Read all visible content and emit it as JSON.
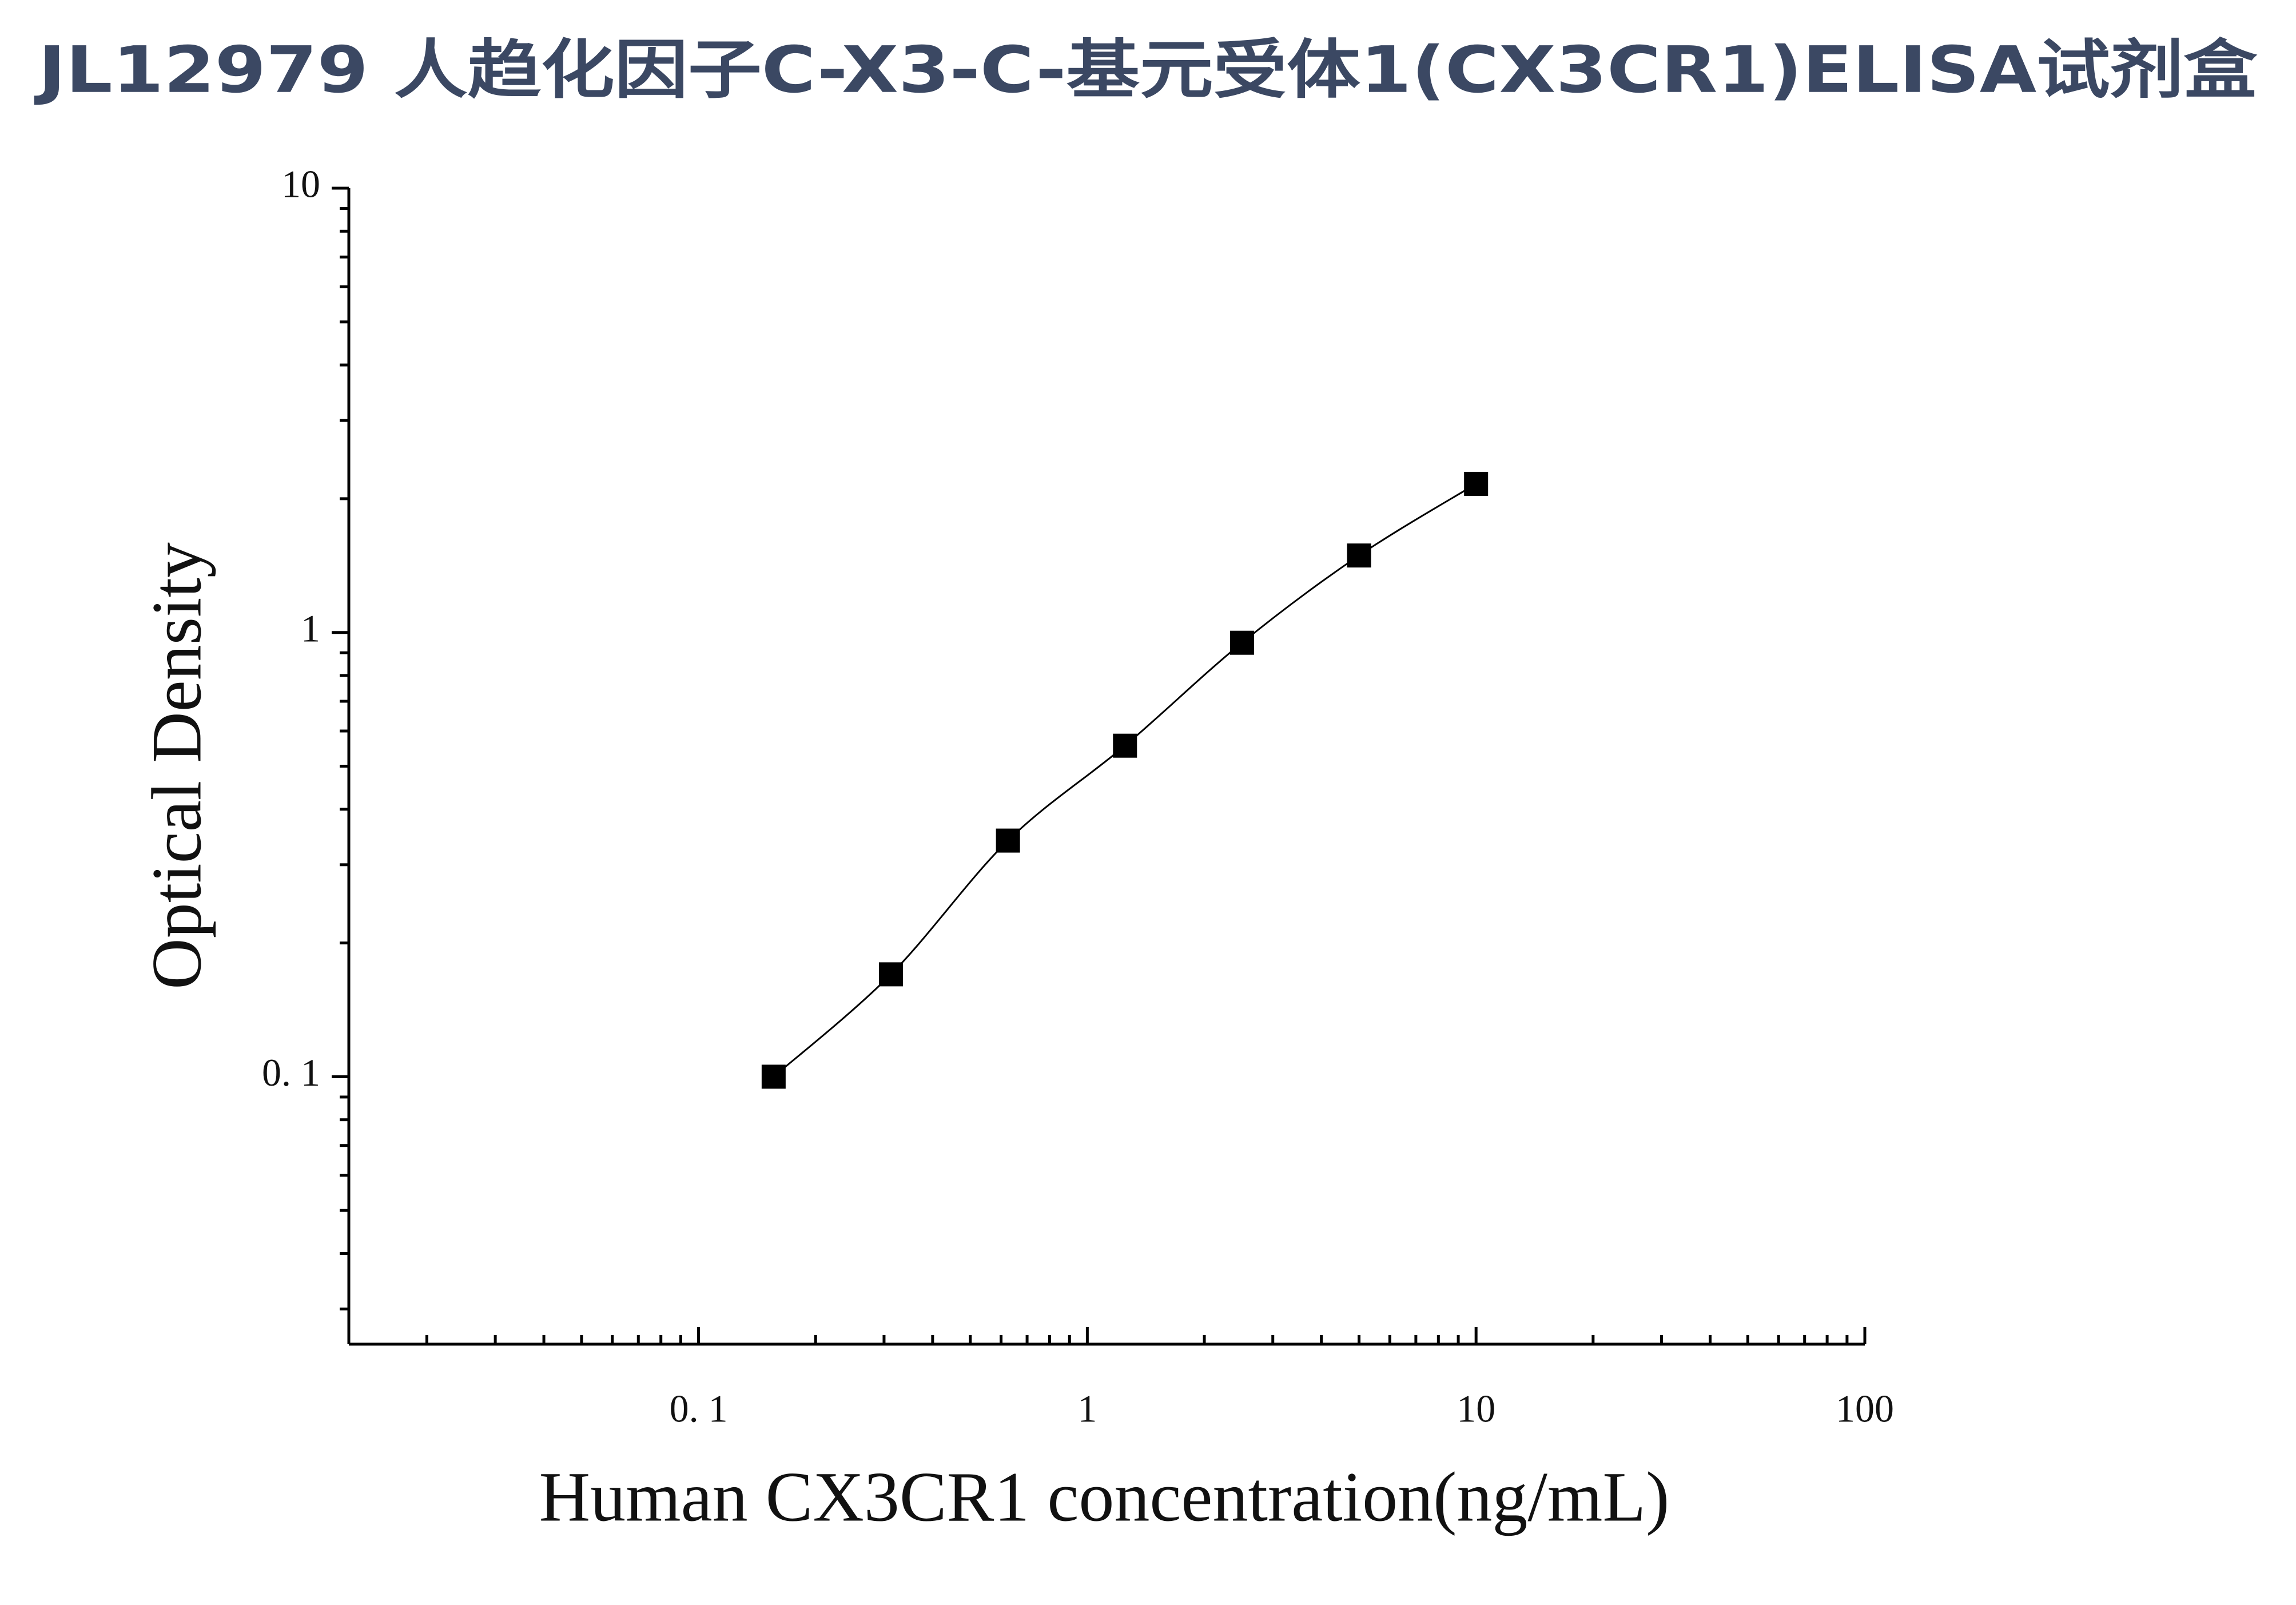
{
  "chart_data": {
    "type": "scatter",
    "title": "JL12979 人趋化因子C-X3-C-基元受体1(CX3CR1)ELISA试剂盒",
    "x_label": "Human CX3CR1 concentration(ng/mL)",
    "y_label": "Optical Density",
    "x_scale": "log",
    "y_scale": "log",
    "series": [
      {
        "color": "#000000",
        "x": [
          0.156,
          0.3125,
          0.625,
          1.25,
          2.5,
          5,
          10
        ],
        "values": [
          0.1,
          0.17,
          0.34,
          0.556,
          0.948,
          1.49,
          2.16
        ]
      }
    ],
    "xlim": [
      0.0126,
      100
    ],
    "ylim": [
      0.025,
      10
    ],
    "xticks": [
      {
        "value": 0.1,
        "label": "0. 1"
      },
      1,
      10,
      100
    ],
    "yticks": [
      {
        "value": 0.1,
        "label": "0. 1"
      },
      1,
      10
    ],
    "grid": false
  }
}
